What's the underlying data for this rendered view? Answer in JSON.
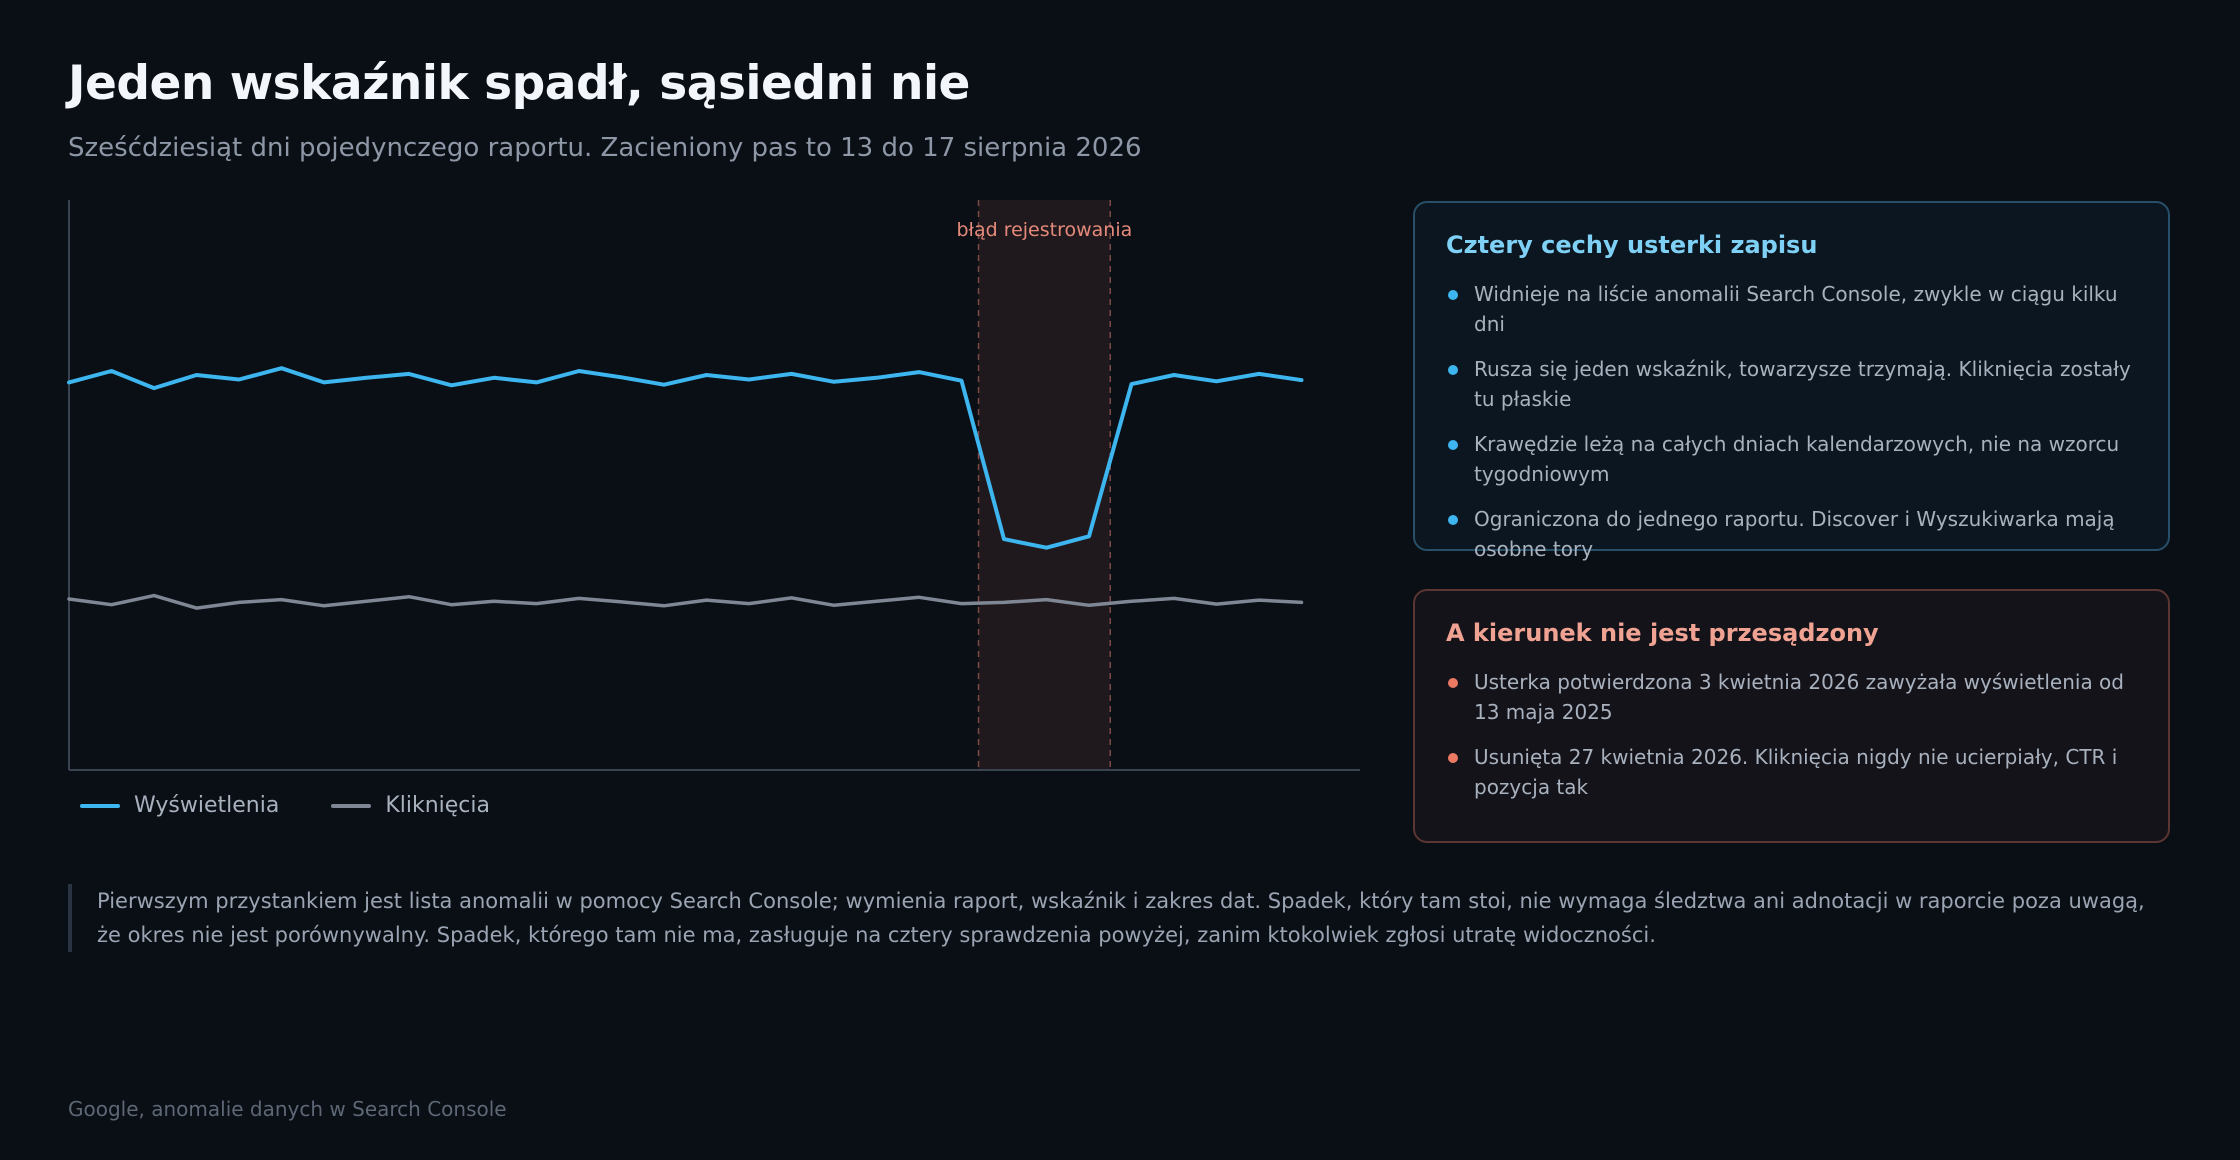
{
  "header": {
    "title": "Jeden wskaźnik spadł, sąsiedni nie",
    "subtitle": "Sześćdziesiąt dni pojedynczego raportu. Zacieniony pas to 13 do 17 sierpnia 2026"
  },
  "chart_data": {
    "type": "line",
    "title": "",
    "xlabel": "",
    "ylabel": "",
    "x": [
      1,
      2,
      3,
      4,
      5,
      6,
      7,
      8,
      9,
      10,
      11,
      12,
      13,
      14,
      15,
      16,
      17,
      18,
      19,
      20,
      21,
      22,
      23,
      24,
      25,
      26,
      27,
      28,
      29,
      30
    ],
    "series": [
      {
        "name": "Wyświetlenia",
        "color": "#3db5ef",
        "values": [
          68,
          70,
          67,
          69.3,
          68.5,
          70.5,
          68,
          68.8,
          69.5,
          67.5,
          68.8,
          68,
          70,
          68.9,
          67.6,
          69.3,
          68.5,
          69.5,
          68.1,
          68.8,
          69.8,
          68.3,
          40.5,
          39,
          41,
          67.7,
          69.3,
          68.2,
          69.5,
          68.4
        ]
      },
      {
        "name": "Kliknięcia",
        "color": "#7f8795",
        "values": [
          30,
          29,
          30.6,
          28.4,
          29.4,
          29.9,
          28.8,
          29.6,
          30.4,
          29,
          29.6,
          29.2,
          30.1,
          29.5,
          28.8,
          29.8,
          29.2,
          30.2,
          28.9,
          29.6,
          30.3,
          29.2,
          29.4,
          29.9,
          28.9,
          29.6,
          30.1,
          29.1,
          29.8,
          29.4
        ]
      }
    ],
    "ylim": [
      0,
      100
    ],
    "grid": false,
    "legend_position": "bottom-left",
    "highlight": {
      "label": "błąd rejestrowania",
      "start": 22.4,
      "end": 25.5,
      "color": "#e58a7a"
    }
  },
  "cards": [
    {
      "title": "Cztery cechy usterki zapisu",
      "items": [
        "Widnieje na liście anomalii Search Console, zwykle w ciągu kilku dni",
        "Rusza się jeden wskaźnik, towarzysze trzymają. Kliknięcia zostały tu płaskie",
        "Krawędzie leżą na całych dniach kalendarzowych, nie na wzorcu tygodniowym",
        "Ograniczona do jednego raportu. Discover i Wyszukiwarka mają osobne tory"
      ]
    },
    {
      "title": "A kierunek nie jest przesądzony",
      "items": [
        "Usterka potwierdzona 3 kwietnia 2026 zawyżała wyświetlenia od 13 maja 2025",
        "Usunięta 27 kwietnia 2026. Kliknięcia nigdy nie ucierpiały, CTR i pozycja tak"
      ]
    }
  ],
  "note": "Pierwszym przystankiem jest lista anomalii w pomocy Search Console; wymienia raport, wskaźnik i zakres dat. Spadek, który tam stoi, nie wymaga śledztwa ani adnotacji w raporcie poza uwagą, że okres nie jest porównywalny. Spadek, którego tam nie ma, zasługuje na cztery sprawdzenia powyżej, zanim ktokolwiek zgłosi utratę widoczności.",
  "source": "Google, anomalie danych w Search Console"
}
